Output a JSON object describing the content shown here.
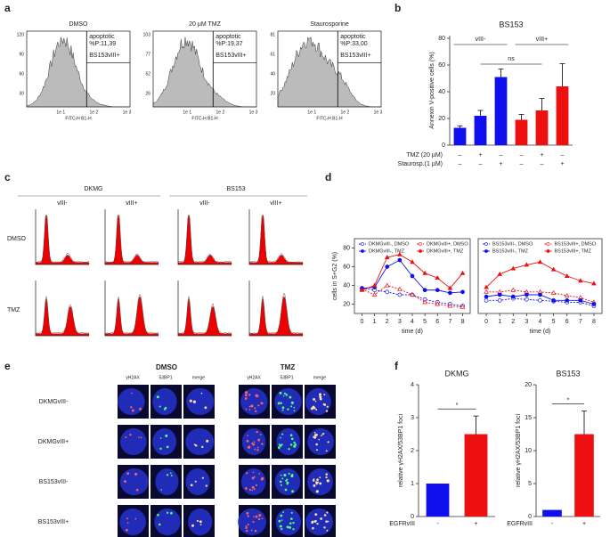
{
  "panel_labels": [
    "a",
    "b",
    "c",
    "d",
    "e",
    "f"
  ],
  "flow_a": {
    "panels": [
      {
        "title": "DMSO",
        "yticks": [
          120,
          90,
          60,
          30
        ],
        "gate_label": "apoptotic",
        "gate_value": "%P:11,39",
        "sample": "BS153vIII+"
      },
      {
        "title": "20 µM TMZ",
        "yticks": [
          103,
          77,
          52,
          26
        ],
        "gate_label": "apoptotic",
        "gate_value": "%P:19,37",
        "sample": "BS153vIII+"
      },
      {
        "title": "Staurosporine",
        "yticks": [
          81,
          61,
          40,
          20
        ],
        "gate_label": "apoptotic",
        "gate_value": "%P:33,00",
        "sample": "BS153vIII+"
      }
    ],
    "xticks": [
      "1e 1",
      "1e 2",
      "1e 3"
    ],
    "xlabel": "FITC-H B1-H"
  },
  "cell_cycle_c": {
    "lines": [
      "DKMG",
      "BS153"
    ],
    "variants": [
      "vIII-",
      "vIII+",
      "vIII-",
      "vIII+"
    ],
    "treatments": [
      "DMSO",
      "TMZ"
    ]
  },
  "microscopy_e": {
    "treatments": [
      "DMSO",
      "TMZ"
    ],
    "channels": [
      "γH2AX",
      "53BP1",
      "merge",
      "γH2AX",
      "53BP1",
      "merge"
    ],
    "rows": [
      "DKMGvIII-",
      "DKMGvIII+",
      "BS153vIII-",
      "BS153vIII+"
    ]
  },
  "chart_data": [
    {
      "type": "bar",
      "title": "BS153",
      "ylabel": "Annexin V-positive cells (%)",
      "categories": [
        null,
        null,
        null,
        null,
        null,
        null
      ],
      "values": [
        13,
        22,
        51,
        19,
        26,
        44
      ],
      "error": [
        1.5,
        4,
        6,
        4,
        9,
        17
      ],
      "colors": [
        "#1010ee",
        "#1010ee",
        "#1010ee",
        "#ee1010",
        "#ee1010",
        "#ee1010"
      ],
      "ylim": [
        0,
        82
      ],
      "yticks": [
        0,
        20,
        40,
        60,
        80
      ],
      "annotations": [
        "vIII-",
        "vIII+",
        "ns"
      ],
      "conditions": [
        {
          "name": "TMZ (20 µM)",
          "marks": [
            "–",
            "+",
            "–",
            "–",
            "+",
            "–"
          ]
        },
        {
          "name": "Staurosp.(1 µM)",
          "marks": [
            "–",
            "–",
            "+",
            "–",
            "–",
            "+"
          ]
        }
      ]
    },
    {
      "type": "line",
      "ylabel": "cells in S+G2 (%)",
      "xlabel": "time (d)",
      "x": [
        0,
        1,
        2,
        3,
        4,
        5,
        6,
        7,
        8
      ],
      "xlim": [
        -0.6,
        8.6
      ],
      "xticks": [
        0,
        1,
        2,
        3,
        4,
        5,
        6,
        7,
        8
      ],
      "ylim": [
        10,
        90
      ],
      "yticks": [
        20,
        40,
        60,
        80
      ],
      "series": [
        {
          "name": "DKMGvIII-, DMSO",
          "color": "#1010ee",
          "style": "open",
          "values": [
            37,
            35,
            33,
            30,
            30,
            25,
            22,
            20,
            18
          ]
        },
        {
          "name": "DKMGvIII+, DMSO",
          "color": "#ee1010",
          "style": "open",
          "values": [
            36,
            30,
            40,
            36,
            30,
            22,
            20,
            18,
            17
          ]
        },
        {
          "name": "DKMGvIII-, TMZ",
          "color": "#1010ee",
          "style": "filled",
          "values": [
            37,
            38,
            60,
            67,
            50,
            35,
            35,
            32,
            33
          ]
        },
        {
          "name": "DKMGvIII+, TMZ",
          "color": "#ee1010",
          "style": "filled",
          "values": [
            35,
            40,
            70,
            73,
            65,
            53,
            48,
            37,
            53
          ]
        }
      ]
    },
    {
      "type": "line",
      "xlabel": "time (d)",
      "x": [
        0,
        1,
        2,
        3,
        4,
        5,
        6,
        7,
        8
      ],
      "xlim": [
        -0.6,
        8.6
      ],
      "xticks": [
        0,
        1,
        2,
        3,
        4,
        5,
        6,
        7,
        8
      ],
      "ylim": [
        10,
        90
      ],
      "series": [
        {
          "name": "BS153vIII-, DMSO",
          "color": "#1010ee",
          "style": "open",
          "values": [
            24,
            24,
            26,
            25,
            24,
            23,
            22,
            22,
            18
          ]
        },
        {
          "name": "BS153vIII+, DMSO",
          "color": "#ee1010",
          "style": "open",
          "values": [
            33,
            33,
            35,
            33,
            33,
            32,
            29,
            27,
            22
          ]
        },
        {
          "name": "BS153vIII-, TMZ",
          "color": "#1010ee",
          "style": "filled",
          "values": [
            28,
            30,
            28,
            30,
            30,
            24,
            24,
            24,
            20
          ]
        },
        {
          "name": "BS153vIII+, TMZ",
          "color": "#ee1010",
          "style": "filled",
          "values": [
            38,
            52,
            58,
            62,
            65,
            57,
            50,
            45,
            42
          ]
        }
      ]
    },
    {
      "type": "bar",
      "title": "DKMG",
      "ylabel": "relative γH2AX/53BP1 foci",
      "xlabel": "EGFRvIII",
      "categories": [
        "-",
        "+"
      ],
      "values": [
        1,
        2.5
      ],
      "error": [
        0,
        0.55
      ],
      "colors": [
        "#1010ee",
        "#ee1010"
      ],
      "ylim": [
        0,
        4
      ],
      "yticks": [
        0,
        1,
        2,
        3,
        4
      ],
      "annotations": [
        "*"
      ]
    },
    {
      "type": "bar",
      "title": "BS153",
      "ylabel": "relative γH2AX/53BP1 foci",
      "xlabel": "EGFRvIII",
      "categories": [
        "-",
        "+"
      ],
      "values": [
        1,
        12.5
      ],
      "error": [
        0,
        3.5
      ],
      "colors": [
        "#1010ee",
        "#ee1010"
      ],
      "ylim": [
        0,
        20
      ],
      "yticks": [
        0,
        5,
        10,
        15,
        20
      ],
      "annotations": [
        "*"
      ]
    }
  ]
}
